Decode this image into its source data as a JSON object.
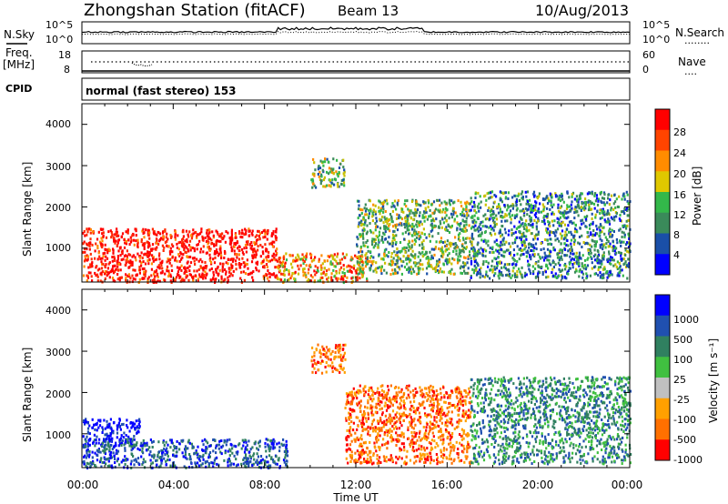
{
  "header": {
    "station": "Zhongshan Station (fitACF)",
    "beam": "Beam 13",
    "date": "10/Aug/2013"
  },
  "nsky_panel": {
    "left_label": "N.Sky",
    "left_ticks": [
      "10^5",
      "10^0"
    ],
    "right_ticks": [
      "10^5",
      "10^0"
    ],
    "right_label": "N.Search",
    "right_legend_line": "........"
  },
  "freq_panel": {
    "left_label_line1": "Freq.",
    "left_label_line2": "[MHz]",
    "left_ticks": [
      "18",
      "8"
    ],
    "right_ticks": [
      "60",
      "0"
    ],
    "right_label": "Nave",
    "right_legend_line": "...."
  },
  "cpid_panel": {
    "label": "CPID",
    "mode_text": "normal (fast stereo) 153"
  },
  "power_panel": {
    "ylabel": "Slant Range [km]",
    "yticks": [
      "4000",
      "3000",
      "2000",
      "1000"
    ],
    "colorbar_label": "Power [dB]",
    "colorbar_ticks": [
      "28",
      "24",
      "20",
      "16",
      "12",
      "8",
      "4"
    ]
  },
  "velocity_panel": {
    "ylabel": "Slant Range [km]",
    "yticks": [
      "4000",
      "3000",
      "2000",
      "1000"
    ],
    "colorbar_label": "Velocity [m s⁻¹]",
    "colorbar_ticks": [
      "1000",
      "500",
      "100",
      "25",
      "-25",
      "-100",
      "-500",
      "-1000"
    ]
  },
  "xaxis": {
    "ticks": [
      "00:00",
      "04:00",
      "08:00",
      "12:00",
      "16:00",
      "20:00",
      "00:00"
    ],
    "xlabel": "Time UT"
  },
  "colors": {
    "power_scale": [
      "#0000ff",
      "#1a4fa8",
      "#3a8a5a",
      "#33b84a",
      "#c8c000",
      "#ff8c00",
      "#ff2a00",
      "#ff0000"
    ],
    "velocity_scale": [
      "#0000ff",
      "#2050b0",
      "#308060",
      "#40c040",
      "#c0c0c0",
      "#ffa000",
      "#ff7000",
      "#ff0000"
    ]
  },
  "chart_data": [
    {
      "type": "heatmap",
      "title": "Power",
      "xlabel": "Time UT",
      "ylabel": "Slant Range [km]",
      "xlim_hours": [
        0,
        24
      ],
      "ylim_km": [
        180,
        4500
      ],
      "colorbar_range_db": [
        0,
        30
      ],
      "echo_regions": [
        {
          "t_start": 0.0,
          "t_end": 8.5,
          "r_min": 200,
          "r_max": 1500,
          "dominant_power_db": 28
        },
        {
          "t_start": 8.5,
          "t_end": 12.5,
          "r_min": 200,
          "r_max": 900,
          "dominant_power_db": 22
        },
        {
          "t_start": 10.0,
          "t_end": 11.5,
          "r_min": 2500,
          "r_max": 3200,
          "dominant_power_db": 14
        },
        {
          "t_start": 12.0,
          "t_end": 17.0,
          "r_min": 400,
          "r_max": 2200,
          "dominant_power_db": 12
        },
        {
          "t_start": 17.0,
          "t_end": 24.0,
          "r_min": 300,
          "r_max": 2400,
          "dominant_power_db": 10
        }
      ]
    },
    {
      "type": "heatmap",
      "title": "Velocity",
      "xlabel": "Time UT",
      "ylabel": "Slant Range [km]",
      "xlim_hours": [
        0,
        24
      ],
      "ylim_km": [
        180,
        4500
      ],
      "colorbar_values": [
        1000,
        500,
        100,
        25,
        -25,
        -100,
        -500,
        -1000
      ],
      "echo_regions": [
        {
          "t_start": 0.0,
          "t_end": 2.5,
          "r_min": 700,
          "r_max": 1400,
          "dominant_velocity": 800
        },
        {
          "t_start": 0.0,
          "t_end": 9.0,
          "r_min": 200,
          "r_max": 900,
          "dominant_velocity": 300
        },
        {
          "t_start": 10.0,
          "t_end": 11.5,
          "r_min": 2500,
          "r_max": 3200,
          "dominant_velocity": -300
        },
        {
          "t_start": 11.5,
          "t_end": 17.0,
          "r_min": 300,
          "r_max": 2200,
          "dominant_velocity": -200
        },
        {
          "t_start": 17.0,
          "t_end": 24.0,
          "r_min": 300,
          "r_max": 2400,
          "dominant_velocity": 100
        }
      ]
    }
  ]
}
